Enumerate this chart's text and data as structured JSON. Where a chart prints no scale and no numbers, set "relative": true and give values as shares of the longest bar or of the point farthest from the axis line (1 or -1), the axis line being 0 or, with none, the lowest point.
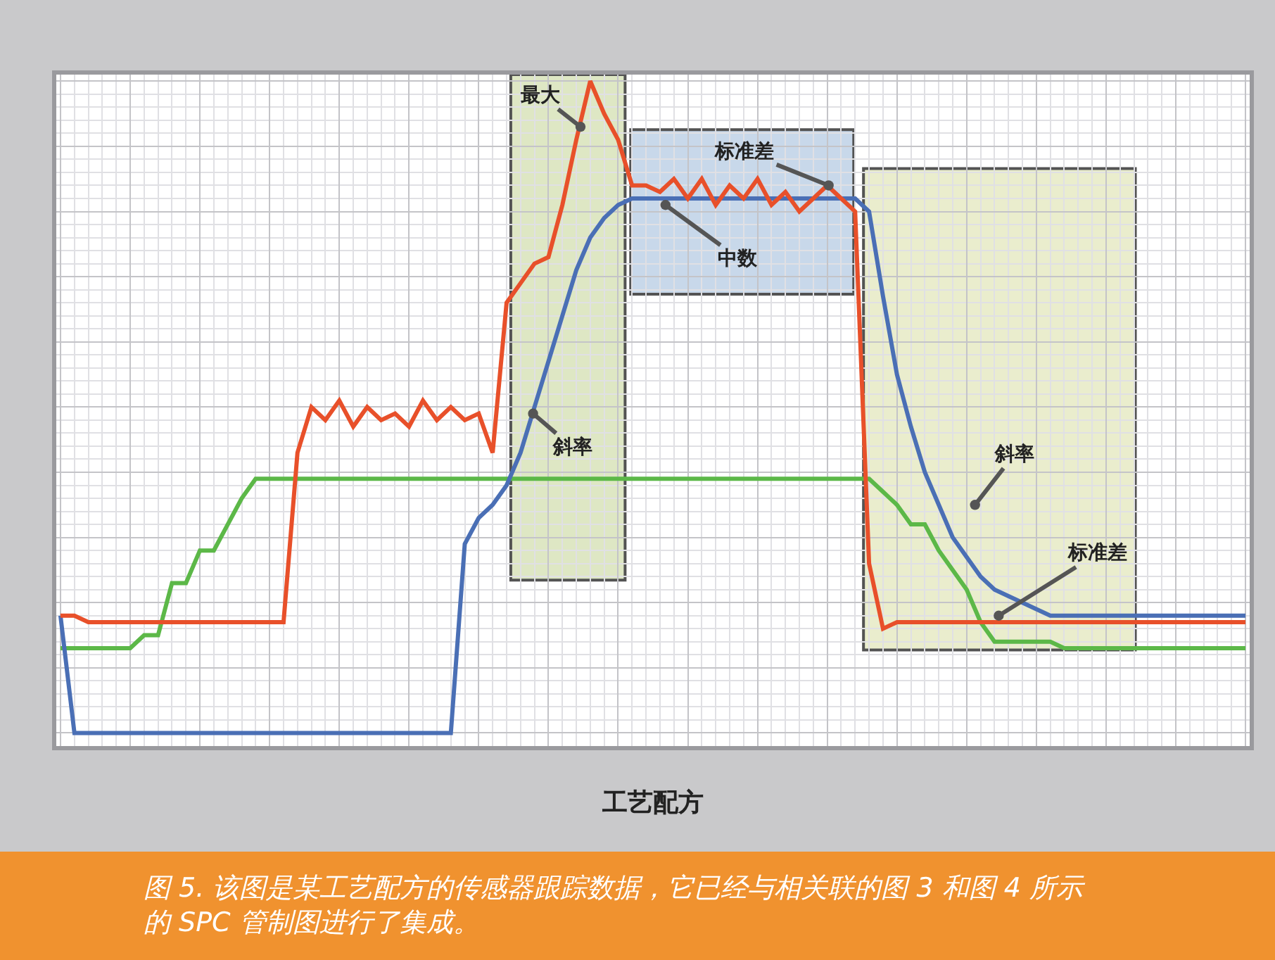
{
  "chart_data": {
    "type": "line",
    "relative": true,
    "grid": true,
    "tick_labels": false,
    "xlabel": "工艺配方",
    "categories": [
      null,
      null,
      null,
      null,
      null,
      null,
      null,
      null,
      null,
      null,
      null,
      null,
      null,
      null,
      null,
      null,
      null,
      null,
      null,
      null,
      null,
      null,
      null,
      null,
      null,
      null,
      null,
      null,
      null,
      null,
      null,
      null,
      null,
      null,
      null,
      null,
      null,
      null,
      null,
      null,
      null,
      null,
      null,
      null,
      null,
      null,
      null,
      null,
      null,
      null,
      null,
      null,
      null,
      null,
      null,
      null,
      null,
      null,
      null,
      null,
      null,
      null,
      null,
      null,
      null,
      null,
      null,
      null,
      null,
      null,
      null,
      null,
      null,
      null,
      null,
      null,
      null,
      null,
      null,
      null,
      null,
      null,
      null,
      null,
      null,
      null
    ],
    "series": [
      {
        "color": "#5cb848",
        "values": [
          0.13,
          0.13,
          0.13,
          0.13,
          0.13,
          0.13,
          0.15,
          0.15,
          0.23,
          0.23,
          0.28,
          0.28,
          0.32,
          0.36,
          0.39,
          0.39,
          0.39,
          0.39,
          0.39,
          0.39,
          0.39,
          0.39,
          0.39,
          0.39,
          0.39,
          0.39,
          0.39,
          0.39,
          0.39,
          0.39,
          0.39,
          0.39,
          0.39,
          0.39,
          0.39,
          0.39,
          0.39,
          0.39,
          0.39,
          0.39,
          0.39,
          0.39,
          0.39,
          0.39,
          0.39,
          0.39,
          0.39,
          0.39,
          0.39,
          0.39,
          0.39,
          0.39,
          0.39,
          0.39,
          0.39,
          0.39,
          0.39,
          0.39,
          0.39,
          0.37,
          0.35,
          0.32,
          0.32,
          0.28,
          0.25,
          0.22,
          0.17,
          0.14,
          0.14,
          0.14,
          0.14,
          0.14,
          0.13,
          0.13,
          0.13,
          0.13,
          0.13,
          0.13,
          0.13,
          0.13,
          0.13,
          0.13,
          0.13,
          0.13,
          0.13,
          0.13
        ]
      },
      {
        "color": "#4a6fb5",
        "values": [
          0.18,
          0,
          0,
          0,
          0,
          0,
          0,
          0,
          0,
          0,
          0,
          0,
          0,
          0,
          0,
          0,
          0,
          0,
          0,
          0,
          0,
          0,
          0,
          0,
          0,
          0,
          0,
          0,
          0,
          0.29,
          0.33,
          0.35,
          0.38,
          0.43,
          0.5,
          0.57,
          0.64,
          0.71,
          0.76,
          0.79,
          0.81,
          0.82,
          0.82,
          0.82,
          0.82,
          0.82,
          0.82,
          0.82,
          0.82,
          0.82,
          0.82,
          0.82,
          0.82,
          0.82,
          0.82,
          0.82,
          0.82,
          0.82,
          0.8,
          0.67,
          0.55,
          0.47,
          0.4,
          0.35,
          0.3,
          0.27,
          0.24,
          0.22,
          0.21,
          0.2,
          0.19,
          0.18,
          0.18,
          0.18,
          0.18,
          0.18,
          0.18,
          0.18,
          0.18,
          0.18,
          0.18,
          0.18,
          0.18,
          0.18,
          0.18,
          0.18
        ]
      },
      {
        "color": "#e8502a",
        "values": [
          0.18,
          0.18,
          0.17,
          0.17,
          0.17,
          0.17,
          0.17,
          0.17,
          0.17,
          0.17,
          0.17,
          0.17,
          0.17,
          0.17,
          0.17,
          0.17,
          0.17,
          0.43,
          0.5,
          0.48,
          0.51,
          0.47,
          0.5,
          0.48,
          0.49,
          0.47,
          0.51,
          0.48,
          0.5,
          0.48,
          0.49,
          0.43,
          0.66,
          0.69,
          0.72,
          0.73,
          0.81,
          0.91,
          1.0,
          0.95,
          0.91,
          0.84,
          0.84,
          0.83,
          0.85,
          0.82,
          0.85,
          0.81,
          0.84,
          0.82,
          0.85,
          0.81,
          0.83,
          0.8,
          0.82,
          0.84,
          0.82,
          0.8,
          0.26,
          0.16,
          0.17,
          0.17,
          0.17,
          0.17,
          0.17,
          0.17,
          0.17,
          0.17,
          0.17,
          0.17,
          0.17,
          0.17,
          0.17,
          0.17,
          0.17,
          0.17,
          0.17,
          0.17,
          0.17,
          0.17,
          0.17,
          0.17,
          0.17,
          0.17,
          0.17,
          0.17
        ]
      }
    ],
    "annotations": [
      "最大",
      "斜率",
      "标准差",
      "中数",
      "斜率",
      "标准差",
      "图 5. 该图是某工艺配方的传感器跟踪数据，它已经与相关联的图 3 和图 4 所示的 SPC 管制图进行了集成。"
    ]
  }
}
